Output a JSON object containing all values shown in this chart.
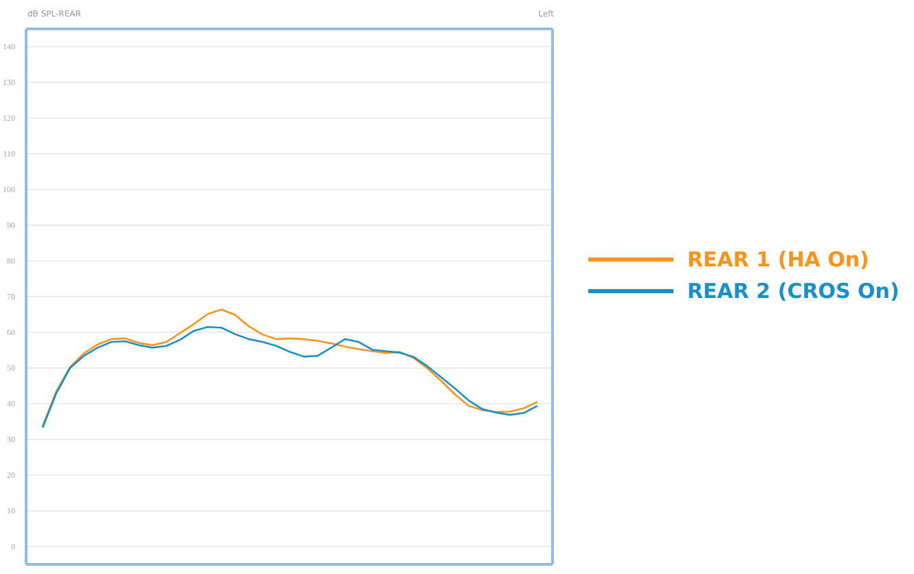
{
  "chart_data": {
    "type": "line",
    "title": "dB SPL-REAR",
    "subtitle": "Left",
    "categories": [
      null,
      null,
      null,
      null,
      null,
      null,
      null,
      null,
      null,
      null,
      null,
      null,
      null,
      null,
      null,
      null,
      null,
      null,
      null,
      null,
      null,
      null,
      null,
      null,
      null,
      null,
      null,
      null,
      null,
      null,
      null,
      null,
      null,
      null,
      null,
      null,
      null
    ],
    "ylim": [
      -5,
      145
    ],
    "yticks": [
      0,
      10,
      20,
      30,
      40,
      50,
      60,
      70,
      80,
      90,
      100,
      110,
      120,
      130,
      140
    ],
    "tick_labels": "y",
    "grid": "y",
    "legend": "right",
    "marker": "none",
    "line_style": "solid",
    "series": [
      {
        "name": "REAR 1 (HA On)",
        "color": "#f7941d",
        "values": [
          33.7,
          43.5,
          50.3,
          54.1,
          56.6,
          58.1,
          58.3,
          57.0,
          56.4,
          57.3,
          59.8,
          62.3,
          65.1,
          66.4,
          64.9,
          61.7,
          59.4,
          58.1,
          58.3,
          58.1,
          57.6,
          56.9,
          56.0,
          55.3,
          54.7,
          54.2,
          54.5,
          52.8,
          49.9,
          46.4,
          42.6,
          39.4,
          38.2,
          37.7,
          37.8,
          38.7,
          40.5
        ]
      },
      {
        "name": "REAR 2 (CROS On)",
        "color": "#1a8fc9",
        "values": [
          33.3,
          43.0,
          50.0,
          53.4,
          55.7,
          57.3,
          57.5,
          56.4,
          55.7,
          56.2,
          57.9,
          60.4,
          61.5,
          61.3,
          59.5,
          58.1,
          57.3,
          56.2,
          54.5,
          53.2,
          53.4,
          55.7,
          58.1,
          57.3,
          55.1,
          54.7,
          54.3,
          53.1,
          50.5,
          47.4,
          44.3,
          40.9,
          38.5,
          37.5,
          36.9,
          37.4,
          39.4
        ]
      }
    ]
  }
}
